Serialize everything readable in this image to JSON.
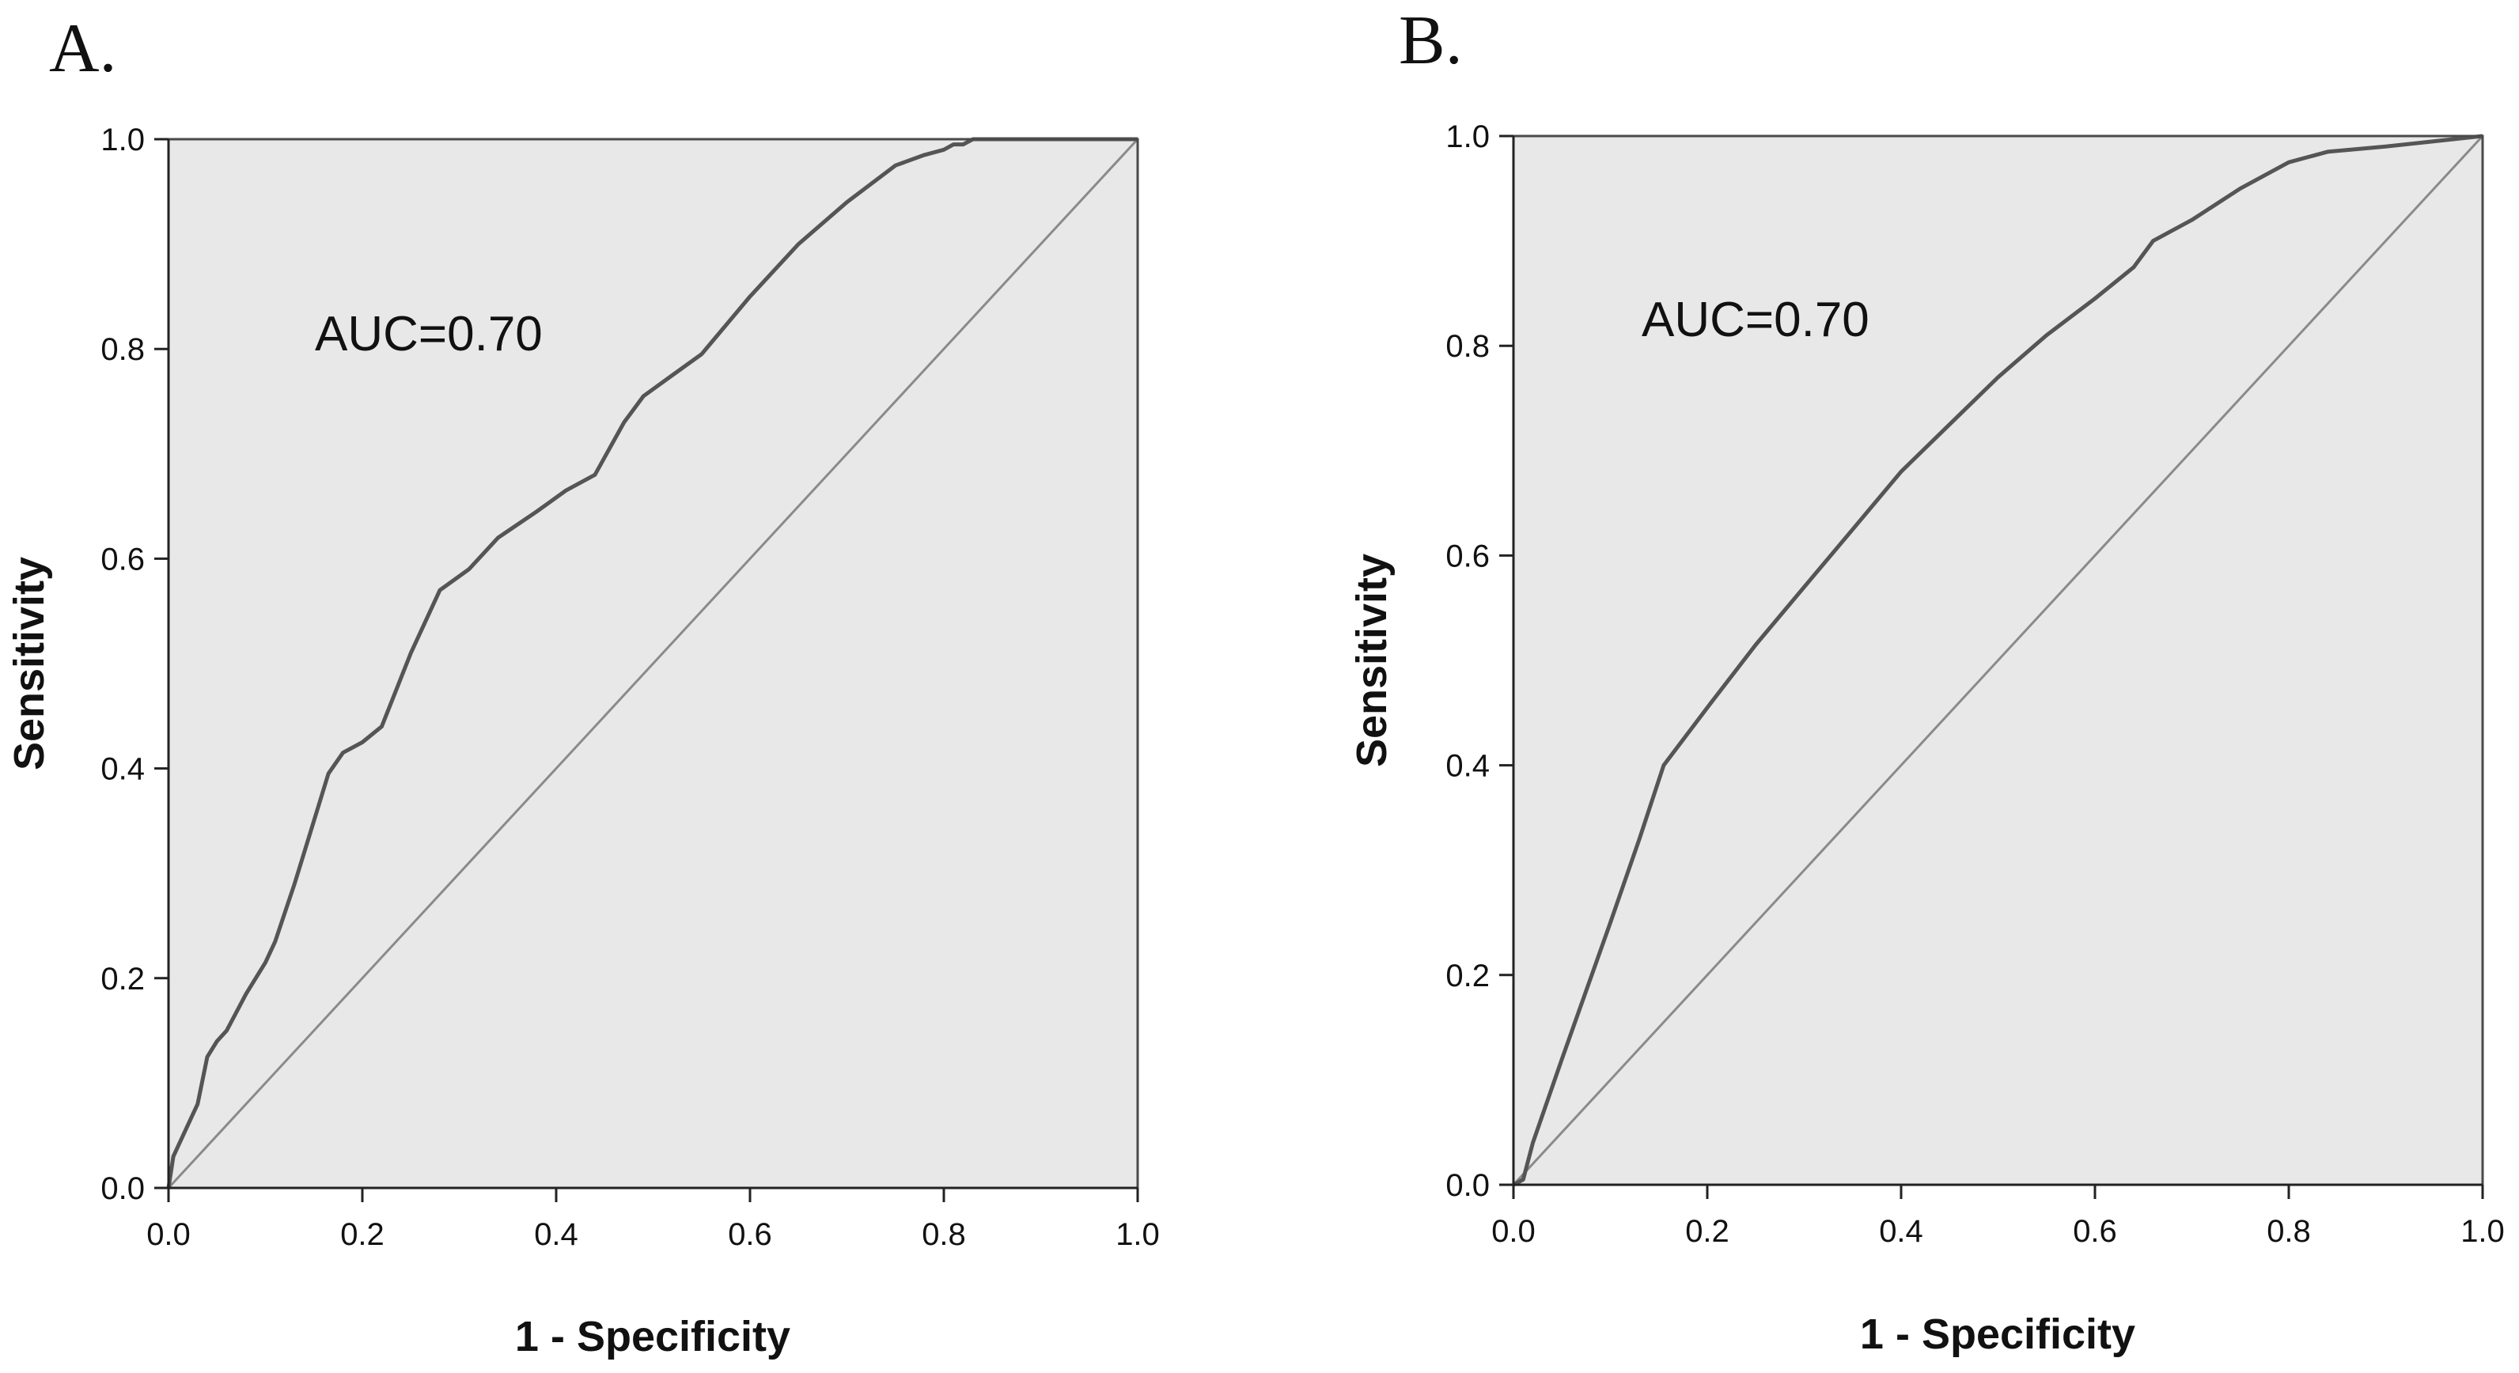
{
  "chart_data": [
    {
      "type": "line",
      "panel_label": "A.",
      "xlabel": "1 - Specificity",
      "ylabel": "Sensitivity",
      "annotation": "AUC=0.70",
      "xlim": [
        0,
        1
      ],
      "ylim": [
        0,
        1
      ],
      "xticks": [
        "0.0",
        "0.2",
        "0.4",
        "0.6",
        "0.8",
        "1.0"
      ],
      "yticks": [
        "0.0",
        "0.2",
        "0.4",
        "0.6",
        "0.8",
        "1.0"
      ],
      "grid": false,
      "series": [
        {
          "x": [
            0,
            0.005,
            0.02,
            0.03,
            0.04,
            0.05,
            0.06,
            0.08,
            0.1,
            0.11,
            0.13,
            0.15,
            0.165,
            0.18,
            0.2,
            0.22,
            0.25,
            0.28,
            0.31,
            0.34,
            0.38,
            0.41,
            0.44,
            0.47,
            0.49,
            0.52,
            0.55,
            0.6,
            0.65,
            0.7,
            0.75,
            0.78,
            0.8,
            0.81,
            0.82,
            0.83,
            1.0
          ],
          "y": [
            0,
            0.03,
            0.06,
            0.08,
            0.125,
            0.14,
            0.15,
            0.185,
            0.215,
            0.235,
            0.29,
            0.35,
            0.395,
            0.415,
            0.425,
            0.44,
            0.51,
            0.57,
            0.59,
            0.62,
            0.645,
            0.665,
            0.68,
            0.73,
            0.755,
            0.775,
            0.795,
            0.85,
            0.9,
            0.94,
            0.975,
            0.985,
            0.99,
            0.995,
            0.995,
            1.0,
            1.0
          ]
        },
        {
          "x": [
            0,
            1
          ],
          "y": [
            0,
            1
          ]
        }
      ]
    },
    {
      "type": "line",
      "panel_label": "B.",
      "xlabel": "1 - Specificity",
      "ylabel": "Sensitivity",
      "annotation": "AUC=0.70",
      "xlim": [
        0,
        1
      ],
      "ylim": [
        0,
        1
      ],
      "xticks": [
        "0.0",
        "0.2",
        "0.4",
        "0.6",
        "0.8",
        "1.0"
      ],
      "yticks": [
        "0.0",
        "0.2",
        "0.4",
        "0.6",
        "0.8",
        "1.0"
      ],
      "grid": false,
      "series": [
        {
          "x": [
            0,
            0.01,
            0.02,
            0.05,
            0.1,
            0.13,
            0.155,
            0.2,
            0.25,
            0.3,
            0.35,
            0.4,
            0.45,
            0.5,
            0.55,
            0.6,
            0.64,
            0.66,
            0.7,
            0.75,
            0.8,
            0.84,
            0.9,
            0.95,
            1.0
          ],
          "y": [
            0,
            0.005,
            0.04,
            0.12,
            0.25,
            0.33,
            0.4,
            0.455,
            0.515,
            0.57,
            0.625,
            0.68,
            0.725,
            0.77,
            0.81,
            0.845,
            0.875,
            0.9,
            0.92,
            0.95,
            0.975,
            0.985,
            0.99,
            0.995,
            1.0
          ]
        },
        {
          "x": [
            0,
            1
          ],
          "y": [
            0,
            1
          ]
        }
      ]
    }
  ]
}
